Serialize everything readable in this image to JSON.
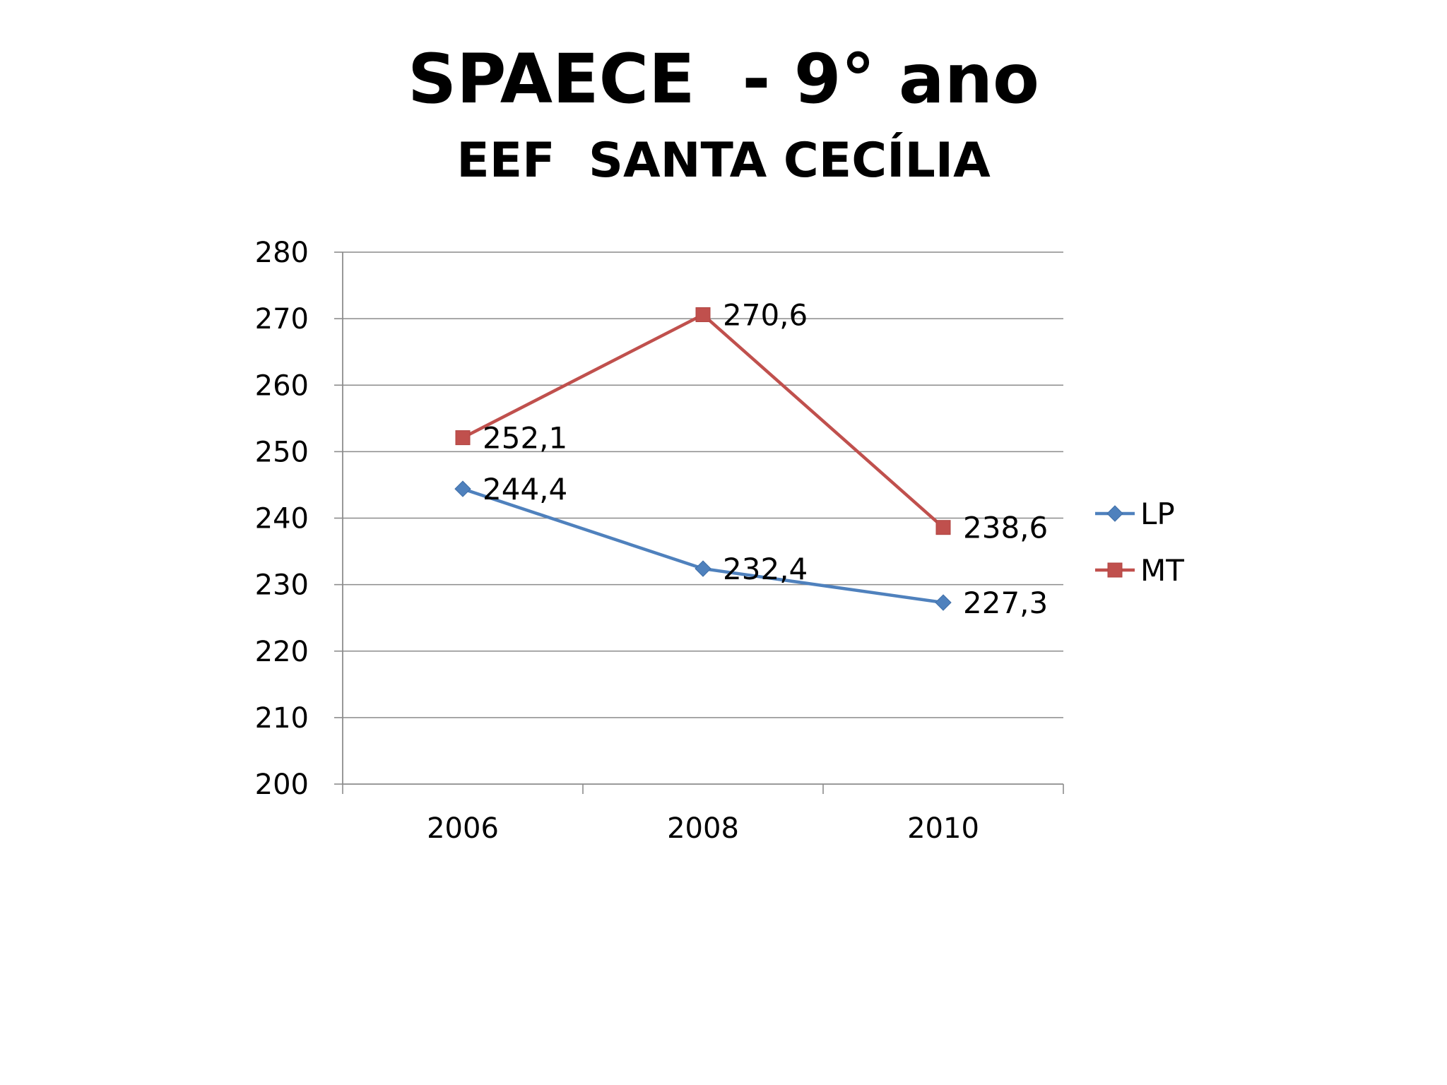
{
  "slide": {
    "title": "SPAECE  - 9° ano",
    "subtitle": "EEF  SANTA CECÍLIA"
  },
  "chart_data": {
    "type": "line",
    "title": "",
    "xlabel": "",
    "ylabel": "",
    "categories": [
      "2006",
      "2008",
      "2010"
    ],
    "ylim": [
      200,
      280
    ],
    "yticks": [
      200,
      210,
      220,
      230,
      240,
      250,
      260,
      270,
      280
    ],
    "grid": true,
    "legend_position": "right",
    "series": [
      {
        "name": "LP",
        "values": [
          244.4,
          232.4,
          227.3
        ],
        "labels": [
          "244,4",
          "232,4",
          "227,3"
        ],
        "color": "#4F81BD",
        "marker": "diamond"
      },
      {
        "name": "MT",
        "values": [
          252.1,
          270.6,
          238.6
        ],
        "labels": [
          "252,1",
          "270,6",
          "238,6"
        ],
        "color": "#C0504D",
        "marker": "square"
      }
    ]
  }
}
